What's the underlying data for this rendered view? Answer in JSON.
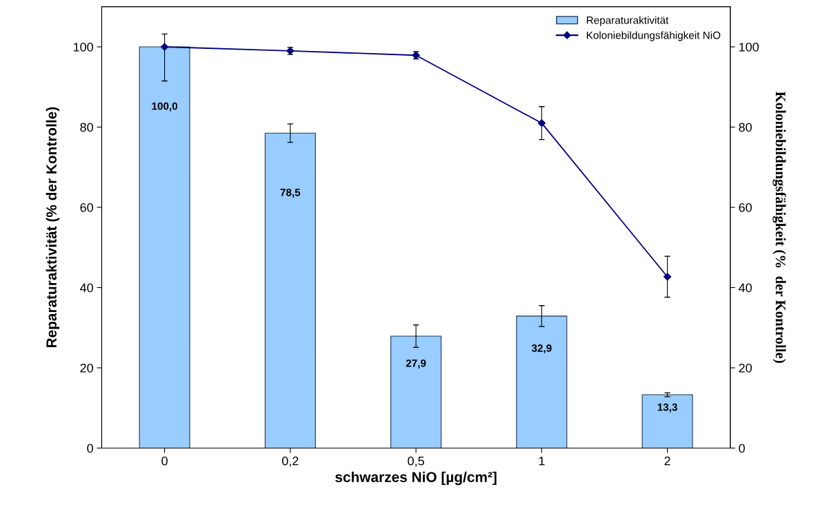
{
  "chart_data": {
    "type": "bar",
    "categories": [
      "0",
      "0,2",
      "0,5",
      "1",
      "2"
    ],
    "xlabel": "schwarzes NiO [µg/cm²]",
    "ylabel": "Reparaturaktivität (% der Kontrolle)",
    "y2label": "Koloniebildungsfähigkeit (%  der Kontrolle)",
    "series": [
      {
        "name": "Reparaturaktivität",
        "color": "#99ccff",
        "values": [
          100.0,
          78.5,
          27.9,
          32.9,
          13.3
        ],
        "errors": [
          null,
          2.3,
          2.8,
          2.6,
          0.5
        ],
        "value_labels": [
          "100,0",
          "78,5",
          "27,9",
          "32,9",
          "13,3"
        ]
      },
      {
        "name": "Koloniebildungsfähigkeit NiO",
        "type": "line",
        "color": "#000080",
        "marker": "diamond",
        "values": [
          100,
          99,
          97.9,
          81.0,
          42.7
        ],
        "errors": [
          [
            91.5,
            103.2
          ],
          0.9,
          0.9,
          4.1,
          5.1
        ]
      }
    ],
    "ylim": [
      0,
      110
    ],
    "yticks": [
      0,
      20,
      40,
      60,
      80,
      100
    ],
    "y2lim": [
      0,
      110
    ],
    "y2ticks": [
      0,
      20,
      40,
      60,
      80,
      100
    ],
    "grid": false,
    "legend": "top right"
  }
}
